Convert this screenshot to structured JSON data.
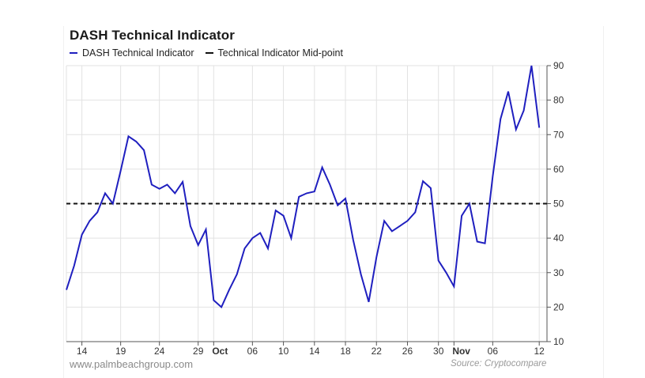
{
  "chart_data": {
    "type": "line",
    "title": "DASH Technical Indicator",
    "legend": [
      {
        "name": "DASH Technical Indicator",
        "color": "#1f1fbf",
        "style": "solid"
      },
      {
        "name": "Technical Indicator Mid-point",
        "color": "#111111",
        "style": "dashed"
      }
    ],
    "legend_placement": "top-left",
    "x_start_date": "2017-09-12",
    "x_ticks": [
      {
        "day": 2,
        "label": "14"
      },
      {
        "day": 7,
        "label": "19"
      },
      {
        "day": 12,
        "label": "24"
      },
      {
        "day": 17,
        "label": "29"
      },
      {
        "day": 19,
        "label": "Oct",
        "bold": true
      },
      {
        "day": 24,
        "label": "06"
      },
      {
        "day": 28,
        "label": "10"
      },
      {
        "day": 32,
        "label": "14"
      },
      {
        "day": 36,
        "label": "18"
      },
      {
        "day": 40,
        "label": "22"
      },
      {
        "day": 44,
        "label": "26"
      },
      {
        "day": 48,
        "label": "30"
      },
      {
        "day": 50,
        "label": "Nov",
        "bold": true
      },
      {
        "day": 55,
        "label": "06"
      },
      {
        "day": 61,
        "label": "12"
      }
    ],
    "ylim": [
      10,
      90
    ],
    "y_ticks": [
      10,
      20,
      30,
      40,
      50,
      60,
      70,
      80,
      90
    ],
    "y_axis_position": "right",
    "grid": true,
    "series": [
      {
        "name": "DASH Technical Indicator",
        "x": [
          0,
          1,
          2,
          3,
          4,
          5,
          6,
          7,
          8,
          9,
          10,
          11,
          12,
          13,
          14,
          15,
          16,
          17,
          18,
          19,
          20,
          21,
          22,
          23,
          24,
          25,
          26,
          27,
          28,
          29,
          30,
          31,
          32,
          33,
          34,
          35,
          36,
          37,
          38,
          39,
          40,
          41,
          42,
          43,
          44,
          45,
          46,
          47,
          48,
          49,
          50,
          51,
          52,
          53,
          54,
          55,
          56,
          57,
          58,
          59,
          60,
          61,
          62
        ],
        "values": [
          25,
          32,
          41,
          45,
          47.5,
          53,
          50,
          59.5,
          69.5,
          68,
          65.5,
          55.5,
          54.3,
          55.5,
          53,
          56.3,
          43.5,
          38,
          42.5,
          22,
          20,
          25,
          29.5,
          37,
          40,
          41.5,
          37,
          48,
          46.5,
          40,
          52,
          53,
          53.5,
          60.5,
          55.5,
          49.5,
          51.5,
          39.5,
          29.5,
          21.5,
          34.5,
          45,
          42,
          43.5,
          45,
          47.5,
          56.5,
          54.5,
          33.5,
          30,
          26,
          46.5,
          50,
          39,
          38.5,
          58,
          74.5,
          82.5,
          71.5,
          77,
          90,
          72,
          null
        ]
      },
      {
        "name": "Technical Indicator Mid-point",
        "constant": 50
      }
    ],
    "sources": {
      "left": "www.palmbeachgroup.com",
      "right": "Source: Cryptocompare"
    }
  }
}
